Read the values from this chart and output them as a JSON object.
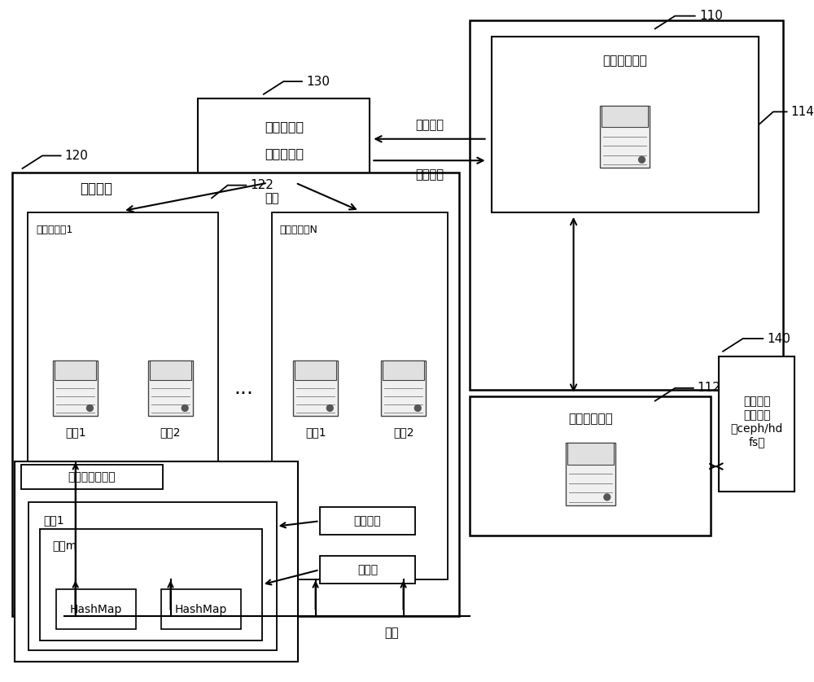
{
  "bg_color": "#ffffff",
  "line_color": "#000000",
  "text_color": "#000000",
  "fig_width": 10.0,
  "fig_height": 8.38,
  "dpi": 100,
  "labels": {
    "ref_110": "110",
    "ref_114": "114",
    "ref_112": "112",
    "ref_130": "130",
    "ref_120": "120",
    "ref_122": "122",
    "ref_140": "140",
    "routing_mgmt": "路由管理服务",
    "model_import": "模型导入服务",
    "client_sdk_l1": "客户端软件",
    "client_sdk_l2": "开发工具包",
    "storage_svc": "存储服务",
    "storage_grp1": "存储节点组1",
    "storage_grpN": "存储节点组N",
    "replica1a": "副本1",
    "replica2a": "副本2",
    "replica1b": "副本1",
    "replica2b": "副本2",
    "pending_l1": "待存储的",
    "pending_l2": "模型文件",
    "pending_l3": "（ceph/hd",
    "pending_l4": "fs）",
    "multi_model": "多模型版本存储",
    "version1": "版本1",
    "versionm": "版本m",
    "hashmap1": "HashMap",
    "hashmap2": "HashMap",
    "readonly": "只读版本",
    "write_ver": "写版本",
    "sync_route": "同步路由",
    "heartbeat": "心跳上报",
    "read_label": "读取",
    "write_label": "写入"
  }
}
